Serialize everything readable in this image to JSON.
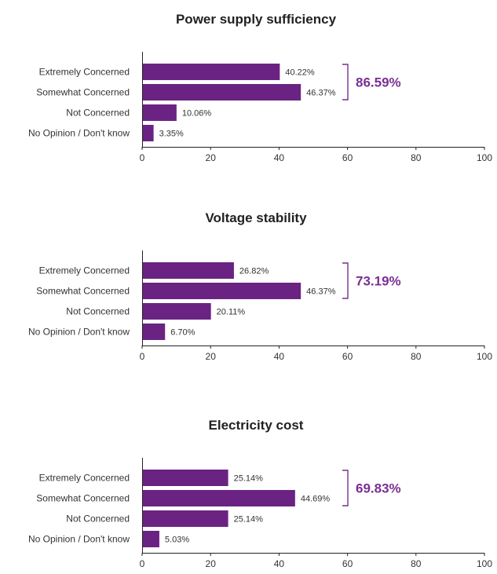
{
  "colors": {
    "bar": "#6b2383",
    "total": "#7a2f94",
    "axis": "#222222"
  },
  "chart_data": [
    {
      "type": "bar",
      "orientation": "horizontal",
      "title": "Power supply sufficiency",
      "categories": [
        "Extremely Concerned",
        "Somewhat Concerned",
        "Not Concerned",
        "No Opinion / Don't know"
      ],
      "values": [
        40.22,
        46.37,
        10.06,
        3.35
      ],
      "value_labels": [
        "40.22%",
        "46.37%",
        "10.06%",
        "3.35%"
      ],
      "xlim": [
        0,
        100
      ],
      "xticks": [
        "0",
        "20",
        "40",
        "60",
        "80",
        "100"
      ],
      "grid": false,
      "legend": "none",
      "total_label": "86.59%"
    },
    {
      "type": "bar",
      "orientation": "horizontal",
      "title": "Voltage stability",
      "categories": [
        "Extremely Concerned",
        "Somewhat Concerned",
        "Not Concerned",
        "No Opinion / Don't know"
      ],
      "values": [
        26.82,
        46.37,
        20.11,
        6.7
      ],
      "value_labels": [
        "26.82%",
        "46.37%",
        "20.11%",
        "6.70%"
      ],
      "xlim": [
        0,
        100
      ],
      "xticks": [
        "0",
        "20",
        "40",
        "60",
        "80",
        "100"
      ],
      "grid": false,
      "legend": "none",
      "total_label": "73.19%"
    },
    {
      "type": "bar",
      "orientation": "horizontal",
      "title": "Electricity cost",
      "categories": [
        "Extremely Concerned",
        "Somewhat Concerned",
        "Not Concerned",
        "No Opinion / Don't know"
      ],
      "values": [
        25.14,
        44.69,
        25.14,
        5.03
      ],
      "value_labels": [
        "25.14%",
        "44.69%",
        "25.14%",
        "5.03%"
      ],
      "xlim": [
        0,
        100
      ],
      "xticks": [
        "0",
        "20",
        "40",
        "60",
        "80",
        "100"
      ],
      "grid": false,
      "legend": "none",
      "total_label": "69.83%"
    }
  ]
}
